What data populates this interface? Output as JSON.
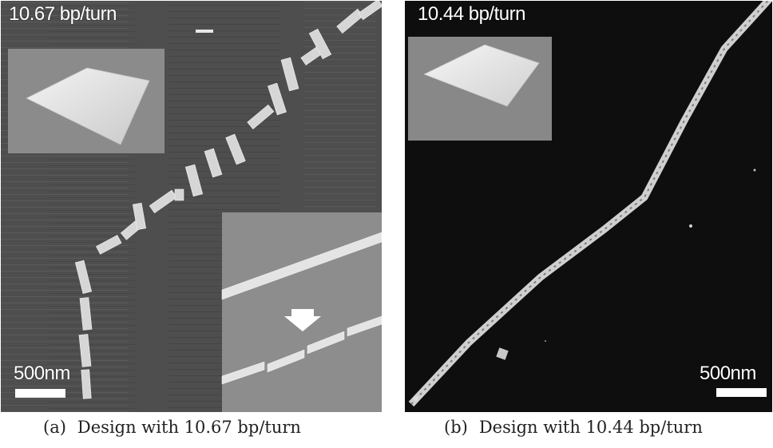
{
  "panels": [
    {
      "id": "a",
      "label": "10.67 bp/turn",
      "scale_label": "500nm",
      "caption_tag": "(a)",
      "caption": "Design with 10.67 bp/turn"
    },
    {
      "id": "b",
      "label": "10.44 bp/turn",
      "scale_label": "500nm",
      "caption_tag": "(b)",
      "caption": "Design with 10.44 bp/turn"
    }
  ],
  "colors": {
    "panel_a_background": "#4f4f4f",
    "panel_b_background": "#0d0d0d",
    "inset_background": "#8c8c8c",
    "structure": "#d9d9d9",
    "text": "#ffffff"
  },
  "icons": [
    "down-arrow-icon"
  ]
}
